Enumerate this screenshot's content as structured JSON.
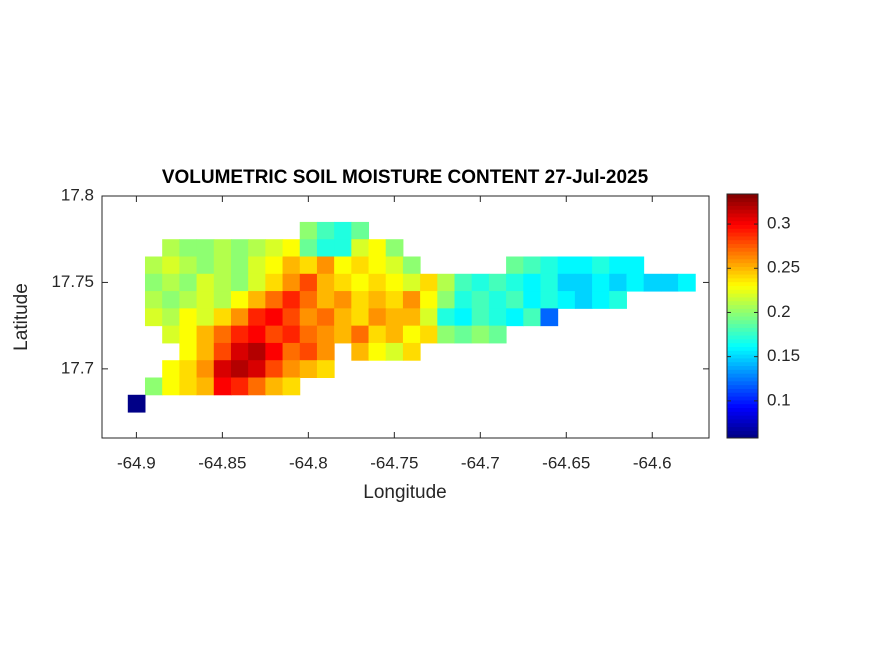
{
  "chart_data": {
    "type": "heatmap",
    "title": "VOLUMETRIC SOIL MOISTURE CONTENT 27-Jul-2025",
    "x_label": "Longitude",
    "y_label": "Latitude",
    "colormap": "jet",
    "xlim": [
      -64.92,
      -64.567
    ],
    "ylim": [
      17.66,
      17.8
    ],
    "clim": [
      0.058,
      0.334
    ],
    "xticks": [
      -64.9,
      -64.85,
      -64.8,
      -64.75,
      -64.7,
      -64.65,
      -64.6
    ],
    "yticks": [
      17.7,
      17.75,
      17.8
    ],
    "cticks": [
      0.1,
      0.15,
      0.2,
      0.25,
      0.3
    ],
    "x": [
      -64.9,
      -64.89,
      -64.88,
      -64.87,
      -64.86,
      -64.85,
      -64.84,
      -64.83,
      -64.82,
      -64.81,
      -64.8,
      -64.79,
      -64.78,
      -64.77,
      -64.76,
      -64.75,
      -64.74,
      -64.73,
      -64.72,
      -64.71,
      -64.7,
      -64.69,
      -64.68,
      -64.67,
      -64.66,
      -64.65,
      -64.64,
      -64.63,
      -64.62,
      -64.61,
      -64.6,
      -64.59,
      -64.58,
      -64.57
    ],
    "y": [
      17.78,
      17.77,
      17.76,
      17.75,
      17.74,
      17.73,
      17.72,
      17.71,
      17.7,
      17.69,
      17.68
    ],
    "z": [
      [
        null,
        null,
        null,
        null,
        null,
        null,
        null,
        null,
        null,
        null,
        0.2,
        0.18,
        0.17,
        0.19,
        null,
        null,
        null,
        null,
        null,
        null,
        null,
        null,
        null,
        null,
        null,
        null,
        null,
        null,
        null,
        null,
        null,
        null,
        null,
        null
      ],
      [
        null,
        null,
        0.21,
        0.2,
        0.2,
        0.21,
        0.2,
        0.21,
        0.22,
        0.23,
        0.19,
        0.17,
        0.17,
        0.22,
        0.23,
        0.2,
        null,
        null,
        null,
        null,
        null,
        null,
        null,
        null,
        null,
        null,
        null,
        null,
        null,
        null,
        null,
        null,
        null,
        null
      ],
      [
        null,
        0.21,
        0.22,
        0.21,
        0.2,
        0.21,
        0.2,
        0.22,
        0.23,
        0.25,
        0.24,
        0.26,
        0.23,
        0.24,
        0.23,
        0.22,
        0.2,
        null,
        null,
        null,
        null,
        null,
        0.19,
        0.18,
        0.17,
        0.16,
        0.16,
        0.17,
        0.16,
        0.16,
        null,
        null,
        null,
        null
      ],
      [
        null,
        0.2,
        0.21,
        0.2,
        0.22,
        0.21,
        0.2,
        0.22,
        0.24,
        0.26,
        0.28,
        0.25,
        0.24,
        0.23,
        0.24,
        0.23,
        0.22,
        0.24,
        0.21,
        0.18,
        0.17,
        0.18,
        0.17,
        0.16,
        0.17,
        0.15,
        0.15,
        0.16,
        0.15,
        0.16,
        0.15,
        0.15,
        0.16,
        null
      ],
      [
        null,
        0.21,
        0.2,
        0.21,
        0.22,
        0.21,
        0.23,
        0.25,
        0.27,
        0.29,
        0.27,
        0.25,
        0.26,
        0.24,
        0.25,
        0.24,
        0.26,
        0.23,
        0.2,
        0.17,
        0.18,
        0.17,
        0.18,
        0.16,
        0.17,
        0.16,
        0.15,
        0.16,
        0.17,
        null,
        null,
        null,
        null,
        null
      ],
      [
        null,
        0.22,
        0.21,
        0.23,
        0.22,
        0.24,
        0.26,
        0.29,
        0.3,
        0.28,
        0.26,
        0.27,
        0.25,
        0.24,
        0.26,
        0.25,
        0.25,
        0.22,
        0.17,
        0.16,
        0.18,
        0.17,
        0.16,
        0.18,
        0.12,
        null,
        null,
        null,
        null,
        null,
        null,
        null,
        null,
        null
      ],
      [
        null,
        null,
        0.22,
        0.23,
        0.25,
        0.27,
        0.29,
        0.3,
        0.28,
        0.29,
        0.27,
        0.26,
        0.25,
        0.27,
        0.24,
        0.25,
        0.23,
        0.24,
        0.2,
        0.19,
        0.2,
        0.19,
        null,
        null,
        null,
        null,
        null,
        null,
        null,
        null,
        null,
        null,
        null,
        null
      ],
      [
        null,
        null,
        null,
        0.23,
        0.25,
        0.28,
        0.31,
        0.32,
        0.3,
        0.27,
        0.28,
        0.26,
        null,
        0.25,
        0.23,
        0.22,
        0.24,
        null,
        null,
        null,
        null,
        null,
        null,
        null,
        null,
        null,
        null,
        null,
        null,
        null,
        null,
        null,
        null,
        null
      ],
      [
        null,
        null,
        0.23,
        0.24,
        0.26,
        0.31,
        0.32,
        0.31,
        0.28,
        0.26,
        0.25,
        0.24,
        null,
        null,
        null,
        null,
        null,
        null,
        null,
        null,
        null,
        null,
        null,
        null,
        null,
        null,
        null,
        null,
        null,
        null,
        null,
        null,
        null,
        null
      ],
      [
        null,
        0.2,
        0.23,
        0.24,
        0.25,
        0.3,
        0.29,
        0.27,
        0.25,
        0.24,
        null,
        null,
        null,
        null,
        null,
        null,
        null,
        null,
        null,
        null,
        null,
        null,
        null,
        null,
        null,
        null,
        null,
        null,
        null,
        null,
        null,
        null,
        null,
        null
      ],
      [
        0.06,
        null,
        null,
        null,
        null,
        null,
        null,
        null,
        null,
        null,
        null,
        null,
        null,
        null,
        null,
        null,
        null,
        null,
        null,
        null,
        null,
        null,
        null,
        null,
        null,
        null,
        null,
        null,
        null,
        null,
        null,
        null,
        null,
        null
      ]
    ]
  }
}
